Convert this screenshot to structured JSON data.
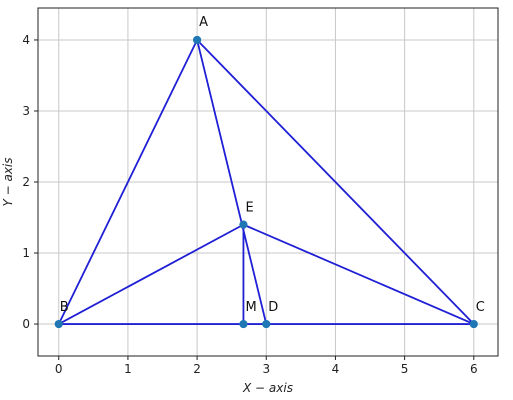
{
  "chart_data": {
    "type": "scatter",
    "xlabel": "X − axis",
    "ylabel": "Y − axis",
    "xlim": [
      -0.3,
      6.35
    ],
    "ylim": [
      -0.45,
      4.45
    ],
    "xticks": [
      0,
      1,
      2,
      3,
      4,
      5,
      6
    ],
    "yticks": [
      0,
      1,
      2,
      3,
      4
    ],
    "grid": true,
    "colors": {
      "line": "#1f1fd6",
      "marker": "#1f77b4",
      "grid": "#c8c8c8"
    },
    "points": [
      {
        "label": "A",
        "x": 2,
        "y": 4
      },
      {
        "label": "B",
        "x": 0,
        "y": 0
      },
      {
        "label": "C",
        "x": 6,
        "y": 0
      },
      {
        "label": "D",
        "x": 3,
        "y": 0
      },
      {
        "label": "E",
        "x": 2.67,
        "y": 1.4
      },
      {
        "label": "M",
        "x": 2.67,
        "y": 0
      }
    ],
    "segments": [
      [
        "A",
        "B"
      ],
      [
        "A",
        "C"
      ],
      [
        "B",
        "C"
      ],
      [
        "A",
        "D"
      ],
      [
        "B",
        "E"
      ],
      [
        "C",
        "E"
      ],
      [
        "E",
        "M"
      ]
    ]
  }
}
